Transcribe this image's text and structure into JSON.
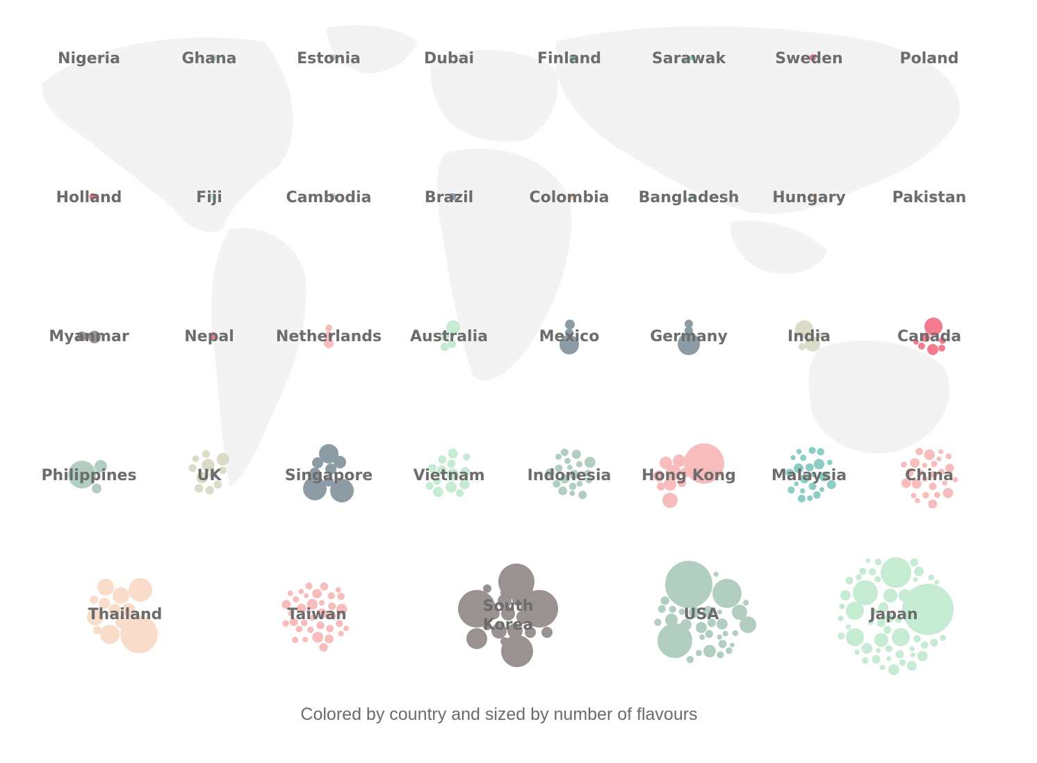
{
  "caption": "Colored by country and sized by number of flavours",
  "palette": {
    "red": "#f47c8e",
    "pink": "#f8bcbc",
    "peach": "#f9dcc9",
    "mint": "#c6ebd3",
    "sage": "#b2cec0",
    "slate": "#8b9ca4",
    "taupe": "#9a9191",
    "beige": "#dcdbc8",
    "teal": "#8ccdc6",
    "map": "#f3f3f3"
  },
  "chart_data": {
    "type": "packed-bubble",
    "title": "",
    "encoding": "bubble color = country; bubble size = number of flavours",
    "countries": [
      {
        "name": "Nigeria",
        "color": "sage",
        "bubbles": 0
      },
      {
        "name": "Ghana",
        "color": "sage",
        "bubbles": 1
      },
      {
        "name": "Estonia",
        "color": "sage",
        "bubbles": 1
      },
      {
        "name": "Dubai",
        "color": "sage",
        "bubbles": 0
      },
      {
        "name": "Finland",
        "color": "teal",
        "bubbles": 1
      },
      {
        "name": "Sarawak",
        "color": "teal",
        "bubbles": 2
      },
      {
        "name": "Sweden",
        "color": "red",
        "bubbles": 1
      },
      {
        "name": "Poland",
        "color": "mint",
        "bubbles": 1
      },
      {
        "name": "Holland",
        "color": "red",
        "bubbles": 1
      },
      {
        "name": "Fiji",
        "color": "mint",
        "bubbles": 1
      },
      {
        "name": "Cambodia",
        "color": "sage",
        "bubbles": 1
      },
      {
        "name": "Brazil",
        "color": "slate",
        "bubbles": 1
      },
      {
        "name": "Colombia",
        "color": "peach",
        "bubbles": 1
      },
      {
        "name": "Bangladesh",
        "color": "teal",
        "bubbles": 2
      },
      {
        "name": "Hungary",
        "color": "peach",
        "bubbles": 1
      },
      {
        "name": "Pakistan",
        "color": "beige",
        "bubbles": 1
      },
      {
        "name": "Myanmar",
        "color": "taupe",
        "bubbles": 2
      },
      {
        "name": "Nepal",
        "color": "red",
        "bubbles": 1
      },
      {
        "name": "Netherlands",
        "color": "pink",
        "bubbles": 3
      },
      {
        "name": "Australia",
        "color": "mint",
        "bubbles": 4
      },
      {
        "name": "Mexico",
        "color": "slate",
        "bubbles": 3
      },
      {
        "name": "Germany",
        "color": "slate",
        "bubbles": 4
      },
      {
        "name": "India",
        "color": "beige",
        "bubbles": 4
      },
      {
        "name": "Canada",
        "color": "red",
        "bubbles": 7
      },
      {
        "name": "Philippines",
        "color": "sage",
        "bubbles": 3
      },
      {
        "name": "UK",
        "color": "beige",
        "bubbles": 11
      },
      {
        "name": "Singapore",
        "color": "slate",
        "bubbles": 8
      },
      {
        "name": "Vietnam",
        "color": "mint",
        "bubbles": 14
      },
      {
        "name": "Indonesia",
        "color": "sage",
        "bubbles": 19
      },
      {
        "name": "Hong Kong",
        "color": "pink",
        "bubbles": 10
      },
      {
        "name": "Malaysia",
        "color": "teal",
        "bubbles": 22
      },
      {
        "name": "China",
        "color": "pink",
        "bubbles": 26
      },
      {
        "name": "Thailand",
        "color": "peach",
        "bubbles": 12
      },
      {
        "name": "Taiwan",
        "color": "pink",
        "bubbles": 36
      },
      {
        "name": "South Korea",
        "color": "taupe",
        "bubbles": 20
      },
      {
        "name": "USA",
        "color": "sage",
        "bubbles": 32
      },
      {
        "name": "Japan",
        "color": "mint",
        "bubbles": 52
      }
    ]
  }
}
